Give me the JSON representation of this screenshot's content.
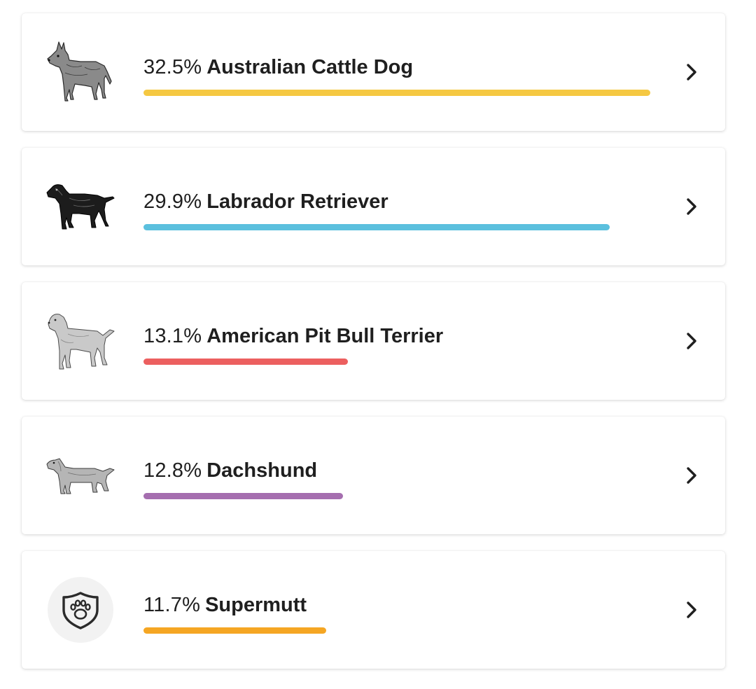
{
  "breeds": [
    {
      "percent_label": "32.5%",
      "name": "Australian Cattle Dog",
      "percent": 32.5,
      "bar_color": "#F5C842",
      "image": "australian-cattle-dog-illustration"
    },
    {
      "percent_label": "29.9%",
      "name": "Labrador Retriever",
      "percent": 29.9,
      "bar_color": "#5BC0DE",
      "image": "labrador-retriever-illustration"
    },
    {
      "percent_label": "13.1%",
      "name": "American Pit Bull Terrier",
      "percent": 13.1,
      "bar_color": "#EC5F5F",
      "image": "american-pit-bull-terrier-illustration"
    },
    {
      "percent_label": "12.8%",
      "name": "Dachshund",
      "percent": 12.8,
      "bar_color": "#A56EAF",
      "image": "dachshund-illustration"
    },
    {
      "percent_label": "11.7%",
      "name": "Supermutt",
      "percent": 11.7,
      "bar_color": "#F5A623",
      "image": "supermutt-paw-shield-icon"
    }
  ],
  "bar_scale_max_percent": 32.5,
  "chevron_icon": "chevron-right-icon",
  "colors": {
    "text": "#1f1f1f",
    "card_background": "#ffffff",
    "icon_background": "#f2f2f2"
  }
}
